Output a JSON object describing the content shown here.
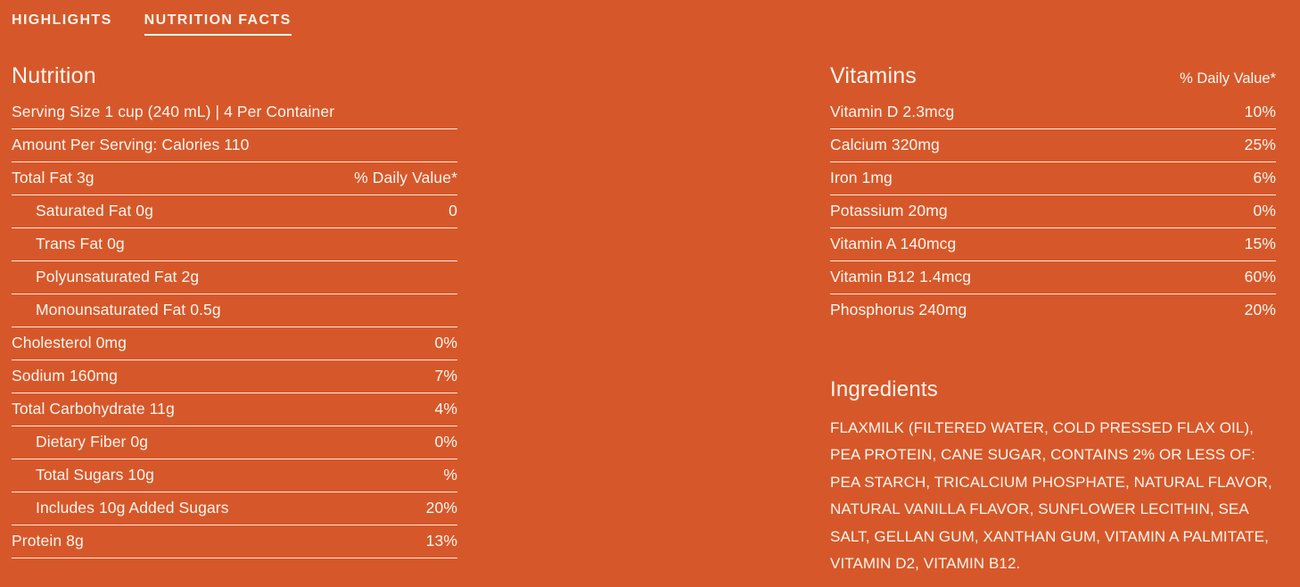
{
  "theme": {
    "background": "#D6582A",
    "text": "#FCF5EE",
    "divider": "#FCF5EE"
  },
  "tabs": [
    {
      "label": "HIGHLIGHTS",
      "active": false
    },
    {
      "label": "NUTRITION FACTS",
      "active": true
    }
  ],
  "nutrition": {
    "title": "Nutrition",
    "rows": [
      {
        "label": "Serving Size 1 cup (240 mL) | 4 Per Container",
        "value": "",
        "indent": false,
        "line": true
      },
      {
        "label": "Amount Per Serving: Calories 110",
        "value": "",
        "indent": false,
        "line": true
      },
      {
        "label": "Total Fat 3g",
        "value": "% Daily Value*",
        "indent": false,
        "line": true
      },
      {
        "label": "Saturated Fat 0g",
        "value": "0",
        "indent": true,
        "line": true
      },
      {
        "label": "Trans Fat 0g",
        "value": "",
        "indent": true,
        "line": true
      },
      {
        "label": "Polyunsaturated Fat 2g",
        "value": "",
        "indent": true,
        "line": true
      },
      {
        "label": "Monounsaturated Fat 0.5g",
        "value": "",
        "indent": true,
        "line": true
      },
      {
        "label": "Cholesterol 0mg",
        "value": "0%",
        "indent": false,
        "line": true
      },
      {
        "label": "Sodium 160mg",
        "value": "7%",
        "indent": false,
        "line": true
      },
      {
        "label": "Total Carbohydrate 11g",
        "value": "4%",
        "indent": false,
        "line": true
      },
      {
        "label": "Dietary Fiber 0g",
        "value": "0%",
        "indent": true,
        "line": true
      },
      {
        "label": "Total Sugars 10g",
        "value": "%",
        "indent": true,
        "line": true
      },
      {
        "label": "Includes 10g Added Sugars",
        "value": "20%",
        "indent": true,
        "line": true
      },
      {
        "label": "Protein 8g",
        "value": "13%",
        "indent": false,
        "line": true
      }
    ]
  },
  "vitamins": {
    "title": "Vitamins",
    "daily_value_label": "% Daily Value*",
    "rows": [
      {
        "label": "Vitamin D 2.3mcg",
        "value": "10%",
        "indent": false,
        "line": true
      },
      {
        "label": "Calcium 320mg",
        "value": "25%",
        "indent": false,
        "line": true
      },
      {
        "label": "Iron 1mg",
        "value": "6%",
        "indent": false,
        "line": true
      },
      {
        "label": "Potassium 20mg",
        "value": "0%",
        "indent": false,
        "line": true
      },
      {
        "label": "Vitamin A 140mcg",
        "value": "15%",
        "indent": false,
        "line": true
      },
      {
        "label": "Vitamin B12 1.4mcg",
        "value": "60%",
        "indent": false,
        "line": true
      },
      {
        "label": "Phosphorus 240mg",
        "value": "20%",
        "indent": false,
        "line": false
      }
    ]
  },
  "ingredients": {
    "title": "Ingredients",
    "text": "FLAXMILK (FILTERED WATER, COLD PRESSED FLAX OIL), PEA PROTEIN, CANE SUGAR, CONTAINS 2% OR LESS OF: PEA STARCH, TRICALCIUM PHOSPHATE, NATURAL FLAVOR, NATURAL VANILLA FLAVOR, SUNFLOWER LECITHIN, SEA SALT, GELLAN GUM, XANTHAN GUM, VITAMIN A PALMITATE, VITAMIN D2, VITAMIN B12."
  }
}
